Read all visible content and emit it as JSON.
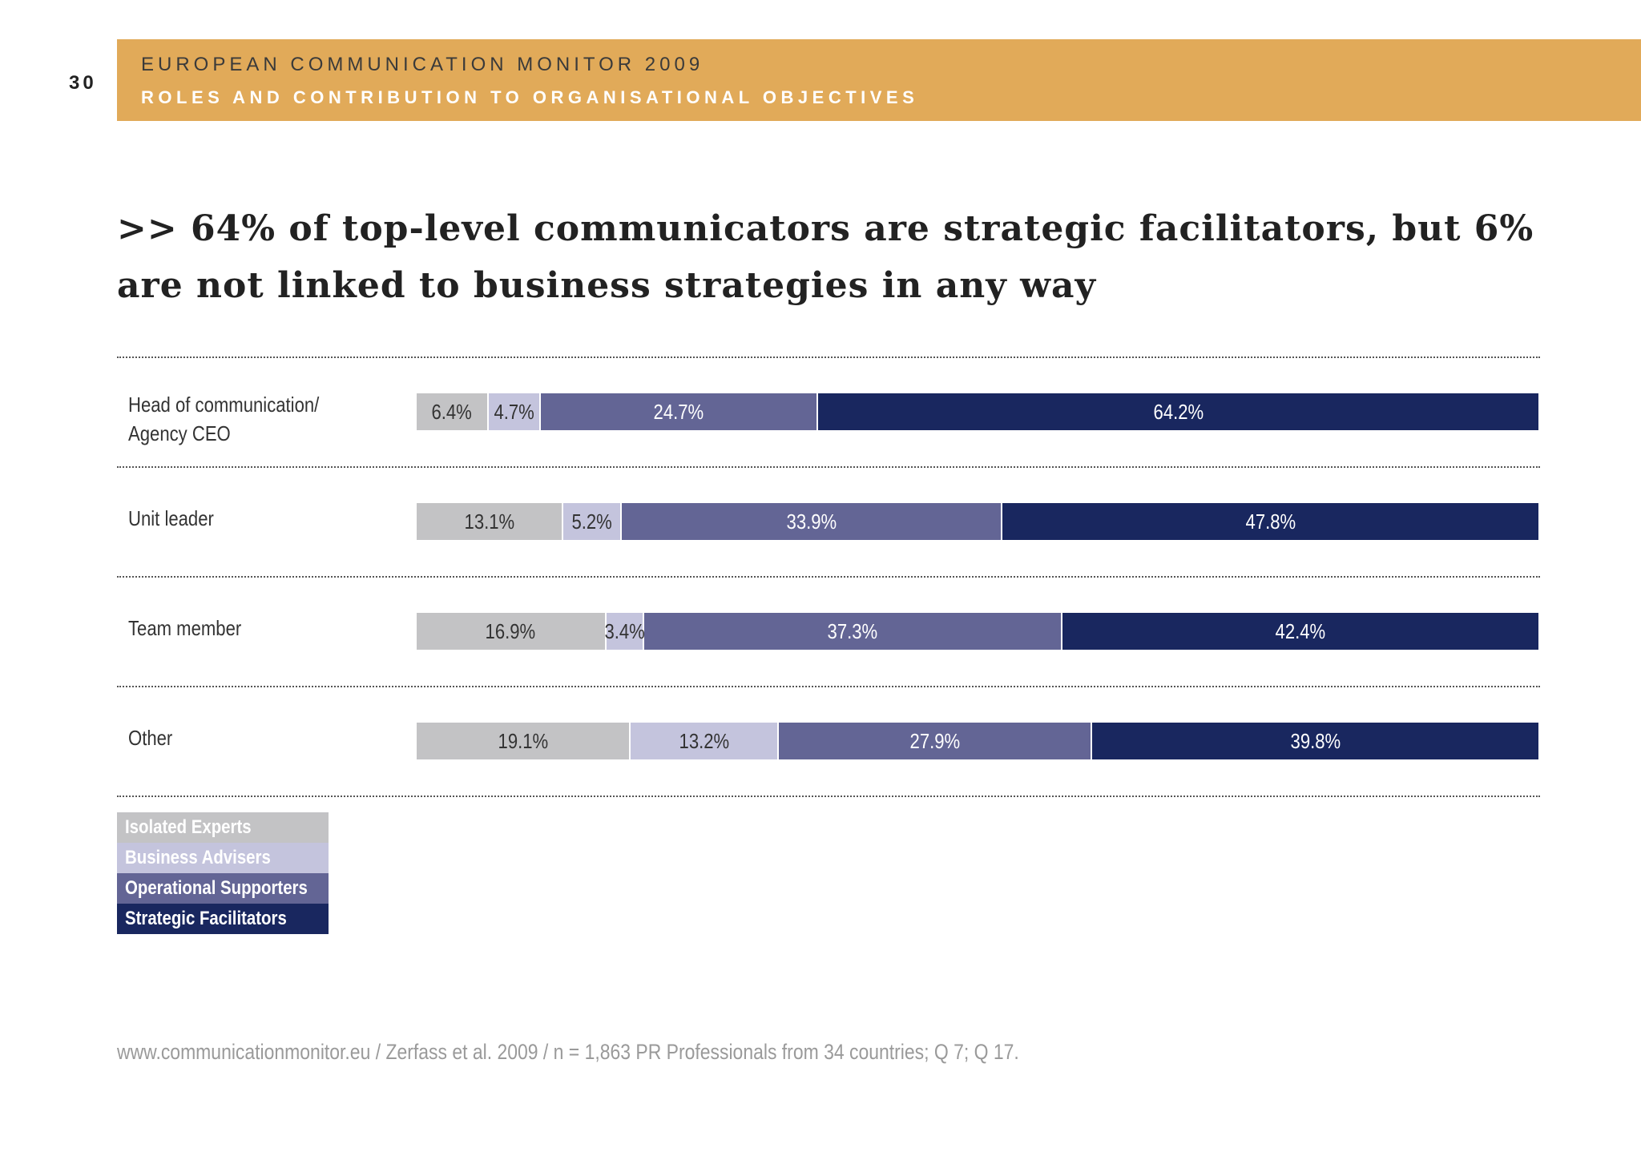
{
  "page_number": "30",
  "header": {
    "title": "EUROPEAN COMMUNICATION MONITOR 2009",
    "subtitle": "ROLES AND CONTRIBUTION TO ORGANISATIONAL OBJECTIVES"
  },
  "headline": ">> 64% of top-level communicators are strategic facilitators, but 6% are not linked to business strategies in any way",
  "footer": "www.communicationmonitor.eu / Zerfass et al. 2009 / n = 1,863 PR Professionals from 34 countries; Q 7; Q 17.",
  "colors": {
    "header_band": "#e1aa59",
    "isolated_experts": "#c3c3c5",
    "business_advisers": "#c4c4dd",
    "operational_supporters": "#636595",
    "strategic_facilitators": "#19275f"
  },
  "chart_data": {
    "type": "bar",
    "orientation": "horizontal",
    "stacked": true,
    "percent_stacked": true,
    "grid": false,
    "legend_position": "bottom-left",
    "categories": [
      "Head of communication/\nAgency CEO",
      "Unit leader",
      "Team member",
      "Other"
    ],
    "series": [
      {
        "name": "Isolated Experts",
        "values": [
          6.4,
          13.1,
          16.9,
          19.1
        ],
        "labels": [
          "6.4%",
          "13.1%",
          "16.9%",
          "19.1%"
        ],
        "color": "#c3c3c5",
        "text_color": "#333333"
      },
      {
        "name": "Business Advisers",
        "values": [
          4.7,
          5.2,
          3.4,
          13.2
        ],
        "labels": [
          "4.7%",
          "5.2%",
          "3.4%",
          "13.2%"
        ],
        "color": "#c4c4dd",
        "text_color": "#333333"
      },
      {
        "name": "Operational Supporters",
        "values": [
          24.7,
          33.9,
          37.3,
          27.9
        ],
        "labels": [
          "24.7%",
          "33.9%",
          "37.3%",
          "27.9%"
        ],
        "color": "#636595",
        "text_color": "#ffffff"
      },
      {
        "name": "Strategic Facilitators",
        "values": [
          64.2,
          47.8,
          42.4,
          39.8
        ],
        "labels": [
          "64.2%",
          "47.8%",
          "42.4%",
          "39.8%"
        ],
        "color": "#19275f",
        "text_color": "#ffffff"
      }
    ]
  }
}
